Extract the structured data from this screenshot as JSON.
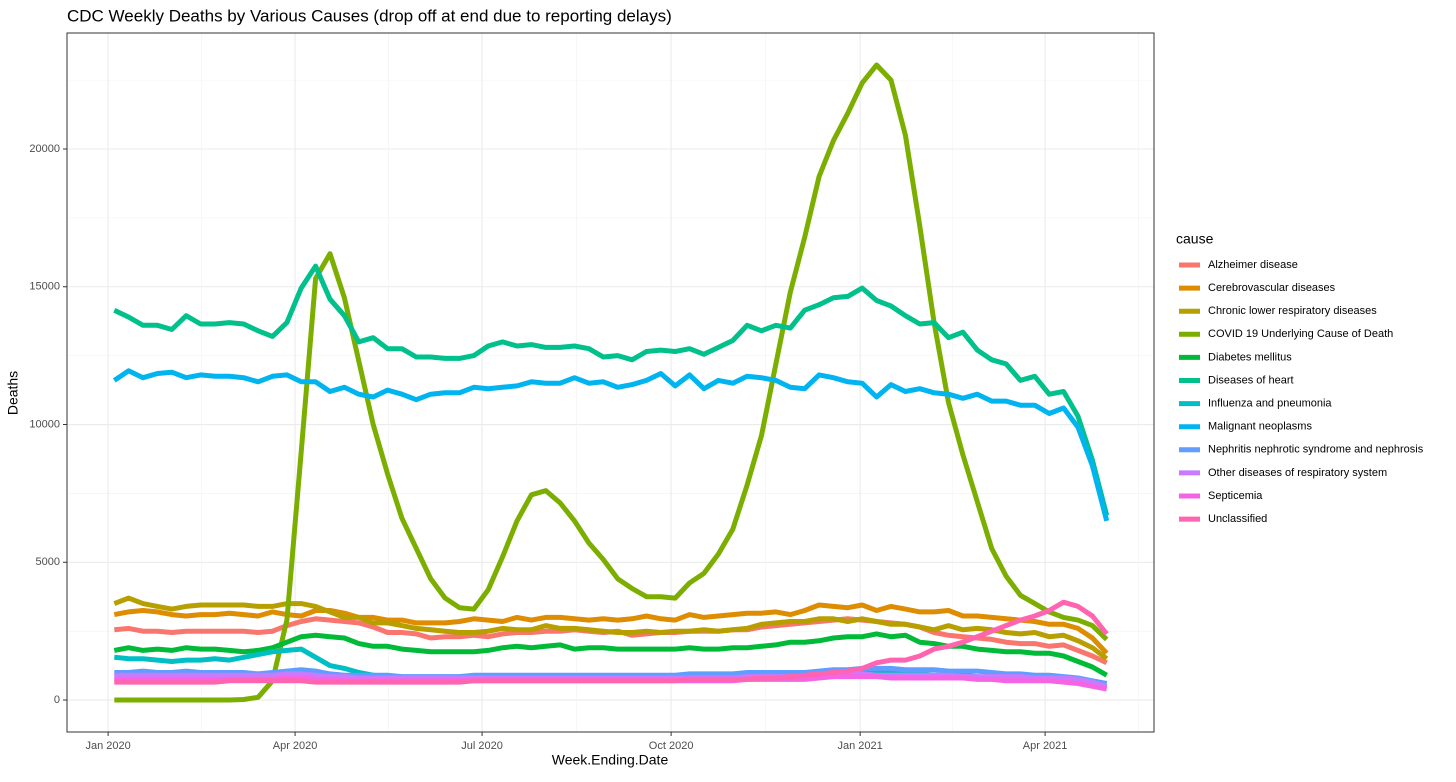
{
  "chart_data": {
    "type": "line",
    "title": "CDC Weekly Deaths by Various Causes (drop off at end due to reporting delays)",
    "x_label": "Week.Ending.Date",
    "y_label": "Deaths",
    "legend_title": "cause",
    "legend": "right",
    "grid": true,
    "xlim": [
      -20,
      509
    ],
    "xticks": [
      {
        "value": 0,
        "label": "Jan 2020"
      },
      {
        "value": 91,
        "label": "Apr 2020"
      },
      {
        "value": 182,
        "label": "Jul 2020"
      },
      {
        "value": 274,
        "label": "Oct 2020"
      },
      {
        "value": 366,
        "label": "Jan 2021"
      },
      {
        "value": 456,
        "label": "Apr 2021"
      }
    ],
    "ylim": [
      -1160,
      24210
    ],
    "yticks": [
      0,
      5000,
      10000,
      15000,
      20000
    ],
    "x": [
      3,
      10,
      17,
      24,
      31,
      38,
      45,
      52,
      59,
      66,
      73,
      80,
      87,
      94,
      101,
      108,
      115,
      122,
      129,
      136,
      143,
      150,
      157,
      164,
      171,
      178,
      185,
      192,
      199,
      206,
      213,
      220,
      227,
      234,
      241,
      248,
      255,
      262,
      269,
      276,
      283,
      290,
      297,
      304,
      311,
      318,
      325,
      332,
      339,
      346,
      353,
      360,
      367,
      374,
      381,
      388,
      395,
      402,
      409,
      416,
      423,
      430,
      437,
      444,
      451,
      458,
      465,
      472,
      479,
      486
    ],
    "series": [
      {
        "name": "Alzheimer disease",
        "color": "#F8766D",
        "values": [
          2550,
          2600,
          2500,
          2500,
          2450,
          2500,
          2500,
          2500,
          2500,
          2500,
          2450,
          2500,
          2700,
          2850,
          2950,
          2900,
          2850,
          2800,
          2650,
          2450,
          2450,
          2400,
          2250,
          2300,
          2300,
          2350,
          2300,
          2400,
          2450,
          2450,
          2500,
          2500,
          2550,
          2500,
          2450,
          2500,
          2350,
          2400,
          2450,
          2450,
          2500,
          2500,
          2500,
          2550,
          2550,
          2650,
          2700,
          2750,
          2800,
          2850,
          2900,
          2950,
          2900,
          2850,
          2800,
          2750,
          2650,
          2450,
          2350,
          2300,
          2250,
          2200,
          2100,
          2050,
          2050,
          1950,
          2000,
          1800,
          1600,
          1350
        ]
      },
      {
        "name": "Cerebrovascular diseases",
        "color": "#DE8C00",
        "values": [
          3100,
          3200,
          3250,
          3200,
          3100,
          3050,
          3100,
          3100,
          3150,
          3100,
          3050,
          3200,
          3100,
          3050,
          3250,
          3250,
          3150,
          3000,
          3000,
          2900,
          2900,
          2800,
          2800,
          2800,
          2850,
          2950,
          2900,
          2850,
          3000,
          2900,
          3000,
          3000,
          2950,
          2900,
          2950,
          2900,
          2950,
          3050,
          2950,
          2900,
          3100,
          3000,
          3050,
          3100,
          3150,
          3150,
          3200,
          3100,
          3250,
          3450,
          3400,
          3350,
          3450,
          3250,
          3400,
          3300,
          3200,
          3200,
          3250,
          3050,
          3050,
          3000,
          2950,
          2900,
          2850,
          2750,
          2750,
          2600,
          2250,
          1700
        ]
      },
      {
        "name": "Chronic lower respiratory diseases",
        "color": "#B79F00",
        "values": [
          3500,
          3700,
          3500,
          3400,
          3300,
          3400,
          3450,
          3450,
          3450,
          3450,
          3400,
          3400,
          3500,
          3500,
          3400,
          3200,
          3000,
          3000,
          2800,
          2800,
          2700,
          2600,
          2550,
          2500,
          2450,
          2450,
          2500,
          2600,
          2550,
          2550,
          2700,
          2600,
          2600,
          2550,
          2500,
          2450,
          2450,
          2500,
          2450,
          2500,
          2500,
          2550,
          2500,
          2550,
          2600,
          2750,
          2800,
          2850,
          2850,
          2950,
          2950,
          2850,
          2950,
          2850,
          2750,
          2750,
          2650,
          2550,
          2700,
          2550,
          2600,
          2550,
          2450,
          2400,
          2450,
          2300,
          2350,
          2150,
          1900,
          1500
        ]
      },
      {
        "name": "COVID 19 Underlying Cause of Death",
        "color": "#7CAE00",
        "values": [
          0,
          0,
          0,
          0,
          0,
          0,
          0,
          0,
          0,
          20,
          100,
          700,
          2900,
          9000,
          15300,
          16200,
          14600,
          12300,
          10000,
          8200,
          6600,
          5500,
          4400,
          3700,
          3350,
          3300,
          4000,
          5200,
          6500,
          7450,
          7600,
          7150,
          6500,
          5700,
          5100,
          4400,
          4050,
          3750,
          3750,
          3700,
          4250,
          4600,
          5300,
          6200,
          7800,
          9600,
          12200,
          14800,
          16800,
          19000,
          20300,
          21300,
          22400,
          23050,
          22500,
          20500,
          17200,
          13700,
          10800,
          8900,
          7200,
          5500,
          4500,
          3800,
          3500,
          3200,
          3000,
          2900,
          2700,
          2200
        ]
      },
      {
        "name": "Diabetes mellitus",
        "color": "#00BA38",
        "values": [
          1800,
          1900,
          1800,
          1850,
          1800,
          1900,
          1850,
          1850,
          1800,
          1750,
          1800,
          1900,
          2100,
          2300,
          2350,
          2300,
          2250,
          2050,
          1950,
          1950,
          1850,
          1800,
          1750,
          1750,
          1750,
          1750,
          1800,
          1900,
          1950,
          1900,
          1950,
          2000,
          1850,
          1900,
          1900,
          1850,
          1850,
          1850,
          1850,
          1850,
          1900,
          1850,
          1850,
          1900,
          1900,
          1950,
          2000,
          2100,
          2100,
          2150,
          2250,
          2300,
          2300,
          2400,
          2300,
          2350,
          2100,
          2050,
          1950,
          1950,
          1850,
          1800,
          1750,
          1750,
          1700,
          1700,
          1600,
          1400,
          1200,
          900
        ]
      },
      {
        "name": "Diseases of heart",
        "color": "#00C08B",
        "values": [
          14150,
          13900,
          13600,
          13600,
          13450,
          13950,
          13650,
          13650,
          13700,
          13650,
          13400,
          13200,
          13700,
          14950,
          15750,
          14550,
          13950,
          13000,
          13150,
          12750,
          12750,
          12450,
          12450,
          12400,
          12400,
          12500,
          12850,
          13000,
          12850,
          12900,
          12800,
          12800,
          12850,
          12750,
          12450,
          12500,
          12350,
          12650,
          12700,
          12650,
          12750,
          12550,
          12800,
          13050,
          13600,
          13400,
          13600,
          13500,
          14150,
          14350,
          14600,
          14650,
          14950,
          14500,
          14300,
          13950,
          13650,
          13700,
          13150,
          13350,
          12700,
          12350,
          12200,
          11600,
          11750,
          11100,
          11200,
          10300,
          8700,
          6700
        ]
      },
      {
        "name": "Influenza and pneumonia",
        "color": "#00BFC4",
        "values": [
          1550,
          1500,
          1500,
          1450,
          1400,
          1450,
          1450,
          1500,
          1450,
          1550,
          1650,
          1750,
          1800,
          1850,
          1550,
          1250,
          1150,
          1000,
          900,
          850,
          800,
          800,
          800,
          800,
          800,
          800,
          800,
          800,
          800,
          800,
          800,
          800,
          800,
          800,
          800,
          800,
          800,
          800,
          800,
          800,
          800,
          800,
          800,
          800,
          800,
          850,
          850,
          850,
          900,
          950,
          1000,
          1050,
          1050,
          1000,
          1000,
          950,
          950,
          900,
          900,
          900,
          850,
          800,
          800,
          750,
          750,
          750,
          700,
          650,
          550,
          450
        ]
      },
      {
        "name": "Malignant neoplasms",
        "color": "#00B4F0",
        "values": [
          11600,
          11950,
          11700,
          11850,
          11900,
          11700,
          11800,
          11750,
          11750,
          11700,
          11550,
          11750,
          11800,
          11550,
          11550,
          11200,
          11350,
          11100,
          11000,
          11250,
          11100,
          10900,
          11100,
          11150,
          11150,
          11350,
          11300,
          11350,
          11400,
          11550,
          11500,
          11500,
          11700,
          11500,
          11550,
          11350,
          11450,
          11600,
          11850,
          11400,
          11800,
          11300,
          11600,
          11500,
          11750,
          11700,
          11600,
          11350,
          11300,
          11800,
          11700,
          11550,
          11500,
          11000,
          11450,
          11200,
          11300,
          11150,
          11100,
          10950,
          11100,
          10850,
          10850,
          10700,
          10700,
          10400,
          10600,
          9900,
          8500,
          6500
        ]
      },
      {
        "name": "Nephritis nephrotic syndrome and nephrosis",
        "color": "#619CFF",
        "values": [
          1000,
          1000,
          1050,
          1000,
          1000,
          1050,
          1000,
          1000,
          1000,
          1000,
          950,
          1000,
          1050,
          1100,
          1050,
          950,
          900,
          900,
          900,
          900,
          850,
          850,
          850,
          850,
          850,
          900,
          900,
          900,
          900,
          900,
          900,
          900,
          900,
          900,
          900,
          900,
          900,
          900,
          900,
          900,
          950,
          950,
          950,
          950,
          1000,
          1000,
          1000,
          1000,
          1000,
          1050,
          1100,
          1100,
          1150,
          1150,
          1150,
          1100,
          1100,
          1100,
          1050,
          1050,
          1050,
          1000,
          950,
          950,
          900,
          900,
          850,
          800,
          700,
          600
        ]
      },
      {
        "name": "Other diseases of respiratory system",
        "color": "#C77CFF",
        "values": [
          900,
          900,
          900,
          900,
          900,
          900,
          900,
          900,
          900,
          900,
          900,
          900,
          950,
          950,
          900,
          850,
          850,
          800,
          800,
          800,
          800,
          800,
          800,
          800,
          800,
          800,
          800,
          800,
          800,
          800,
          800,
          800,
          800,
          800,
          800,
          800,
          800,
          800,
          800,
          800,
          800,
          800,
          800,
          800,
          850,
          850,
          850,
          850,
          850,
          900,
          950,
          950,
          950,
          900,
          900,
          900,
          900,
          900,
          900,
          850,
          850,
          850,
          850,
          850,
          800,
          800,
          800,
          750,
          650,
          500
        ]
      },
      {
        "name": "Septicemia",
        "color": "#F564E3",
        "values": [
          750,
          750,
          750,
          750,
          750,
          750,
          750,
          750,
          750,
          750,
          750,
          750,
          800,
          800,
          750,
          750,
          700,
          700,
          700,
          700,
          700,
          700,
          700,
          700,
          700,
          700,
          700,
          700,
          700,
          700,
          700,
          700,
          700,
          700,
          700,
          700,
          700,
          700,
          700,
          700,
          700,
          700,
          700,
          700,
          750,
          750,
          750,
          750,
          750,
          800,
          850,
          850,
          850,
          850,
          800,
          800,
          800,
          800,
          800,
          800,
          750,
          750,
          700,
          700,
          700,
          700,
          650,
          600,
          500,
          400
        ]
      },
      {
        "name": "Unclassified",
        "color": "#FF64B0",
        "values": [
          650,
          650,
          650,
          650,
          650,
          650,
          650,
          650,
          700,
          700,
          700,
          700,
          700,
          700,
          650,
          650,
          650,
          650,
          650,
          650,
          650,
          650,
          650,
          650,
          650,
          700,
          700,
          700,
          700,
          700,
          700,
          700,
          700,
          700,
          700,
          700,
          700,
          700,
          700,
          700,
          750,
          750,
          750,
          750,
          750,
          800,
          800,
          850,
          900,
          950,
          1000,
          1050,
          1150,
          1350,
          1450,
          1450,
          1600,
          1850,
          1950,
          2100,
          2300,
          2500,
          2700,
          2900,
          3050,
          3250,
          3550,
          3400,
          3050,
          2400
        ]
      }
    ]
  }
}
